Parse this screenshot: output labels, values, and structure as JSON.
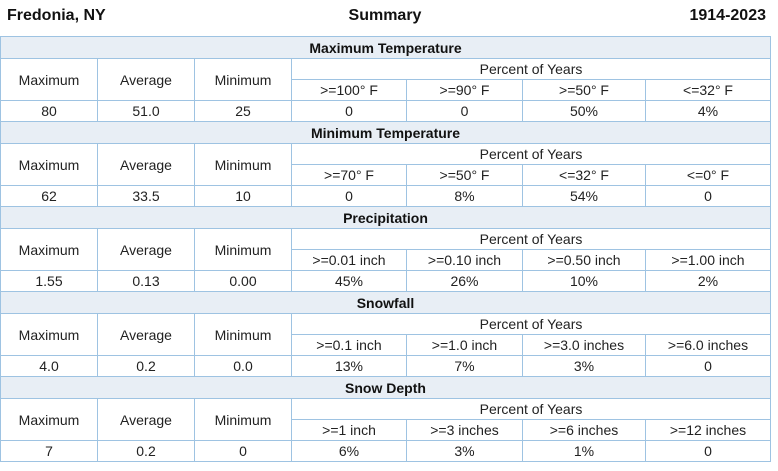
{
  "header": {
    "location": "Fredonia, NY",
    "title": "Summary",
    "years": "1914-2023"
  },
  "labels": {
    "maximum": "Maximum",
    "average": "Average",
    "minimum": "Minimum",
    "percent_of_years": "Percent of Years"
  },
  "sections": [
    {
      "title": "Maximum Temperature",
      "thresholds": [
        ">=100° F",
        ">=90° F",
        ">=50° F",
        "<=32° F"
      ],
      "values": [
        "80",
        "51.0",
        "25"
      ],
      "percents": [
        "0",
        "0",
        "50%",
        "4%"
      ]
    },
    {
      "title": "Minimum Temperature",
      "thresholds": [
        ">=70° F",
        ">=50° F",
        "<=32° F",
        "<=0° F"
      ],
      "values": [
        "62",
        "33.5",
        "10"
      ],
      "percents": [
        "0",
        "8%",
        "54%",
        "0"
      ]
    },
    {
      "title": "Precipitation",
      "thresholds": [
        ">=0.01 inch",
        ">=0.10 inch",
        ">=0.50 inch",
        ">=1.00 inch"
      ],
      "values": [
        "1.55",
        "0.13",
        "0.00"
      ],
      "percents": [
        "45%",
        "26%",
        "10%",
        "2%"
      ]
    },
    {
      "title": "Snowfall",
      "thresholds": [
        ">=0.1 inch",
        ">=1.0 inch",
        ">=3.0 inches",
        ">=6.0 inches"
      ],
      "values": [
        "4.0",
        "0.2",
        "0.0"
      ],
      "percents": [
        "13%",
        "7%",
        "3%",
        "0"
      ]
    },
    {
      "title": "Snow Depth",
      "thresholds": [
        ">=1 inch",
        ">=3 inches",
        ">=6 inches",
        ">=12 inches"
      ],
      "values": [
        "7",
        "0.2",
        "0"
      ],
      "percents": [
        "6%",
        "3%",
        "1%",
        "0"
      ]
    }
  ],
  "colors": {
    "border": "#9ec3e2",
    "section_bg": "#e8eef5"
  }
}
